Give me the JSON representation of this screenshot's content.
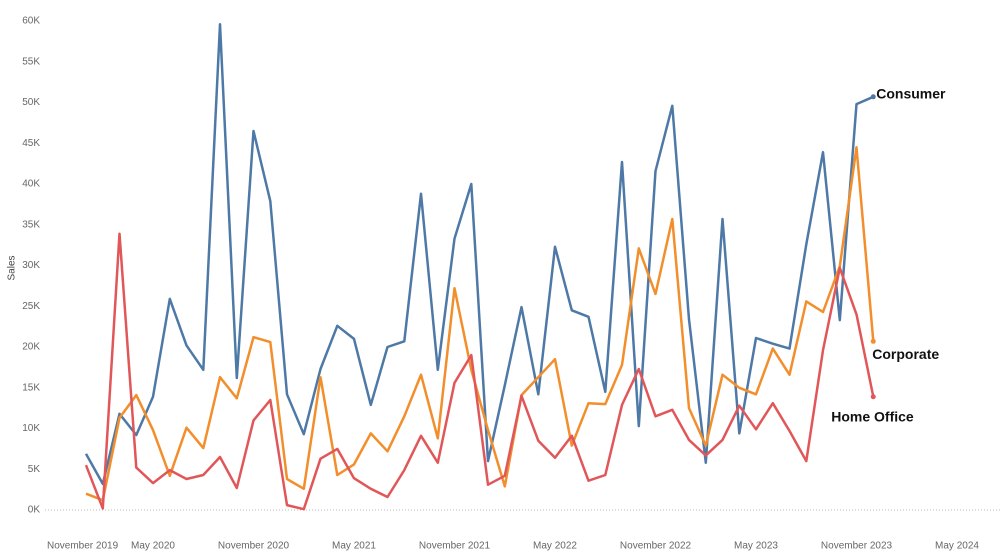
{
  "chart_data": {
    "type": "line",
    "y_label": "Sales",
    "x": [
      "2020-01",
      "2020-02",
      "2020-03",
      "2020-04",
      "2020-05",
      "2020-06",
      "2020-07",
      "2020-08",
      "2020-09",
      "2020-10",
      "2020-11",
      "2020-12",
      "2021-01",
      "2021-02",
      "2021-03",
      "2021-04",
      "2021-05",
      "2021-06",
      "2021-07",
      "2021-08",
      "2021-09",
      "2021-10",
      "2021-11",
      "2021-12",
      "2022-01",
      "2022-02",
      "2022-03",
      "2022-04",
      "2022-05",
      "2022-06",
      "2022-07",
      "2022-08",
      "2022-09",
      "2022-10",
      "2022-11",
      "2022-12",
      "2023-01",
      "2023-02",
      "2023-03",
      "2023-04",
      "2023-05",
      "2023-06",
      "2023-07",
      "2023-08",
      "2023-09",
      "2023-10",
      "2023-11",
      "2023-12"
    ],
    "series": [
      {
        "name": "Consumer",
        "color": "#4e79a7",
        "values": [
          6900,
          3200,
          11800,
          9200,
          13900,
          25900,
          20200,
          17200,
          59600,
          16200,
          46500,
          37900,
          14200,
          9300,
          17300,
          22600,
          21000,
          12900,
          20000,
          20700,
          38800,
          17200,
          33300,
          40000,
          6000,
          15300,
          24900,
          14200,
          32300,
          24500,
          23700,
          14500,
          42700,
          10300,
          41600,
          49600,
          23400,
          5800,
          35700,
          9400,
          21100,
          20400,
          19800,
          32600,
          43900,
          23300,
          49800,
          50700
        ]
      },
      {
        "name": "Corporate",
        "color": "#f28e2b",
        "values": [
          2000,
          1200,
          11300,
          14100,
          9800,
          4200,
          10100,
          7600,
          16300,
          13700,
          21200,
          20600,
          3800,
          2600,
          16300,
          4300,
          5600,
          9400,
          7200,
          11500,
          16600,
          8800,
          27200,
          17200,
          9800,
          2900,
          14100,
          16300,
          18500,
          7900,
          13100,
          13000,
          17800,
          32100,
          26500,
          35700,
          12500,
          7900,
          16600,
          15000,
          14200,
          19800,
          16600,
          25600,
          24300,
          29900,
          44500,
          20700
        ]
      },
      {
        "name": "Home Office",
        "color": "#e15759",
        "values": [
          5500,
          200,
          33900,
          5200,
          3300,
          4900,
          3800,
          4300,
          6500,
          2700,
          11000,
          13500,
          600,
          100,
          6300,
          7500,
          3900,
          2600,
          1600,
          4900,
          9100,
          5800,
          15600,
          19000,
          3100,
          4200,
          14000,
          8500,
          6400,
          9100,
          3600,
          4300,
          12900,
          17300,
          11500,
          12300,
          8600,
          6700,
          8600,
          12800,
          9900,
          13100,
          9700,
          6000,
          19600,
          29700,
          24000,
          13900
        ]
      }
    ],
    "xlim": [
      "2019-11",
      "2024-07"
    ],
    "xticks": [
      {
        "value": "2019-11",
        "label": "November 2019"
      },
      {
        "value": "2020-05",
        "label": "May 2020"
      },
      {
        "value": "2020-11",
        "label": "November 2020"
      },
      {
        "value": "2021-05",
        "label": "May 2021"
      },
      {
        "value": "2021-11",
        "label": "November 2021"
      },
      {
        "value": "2022-05",
        "label": "May 2022"
      },
      {
        "value": "2022-11",
        "label": "November 2022"
      },
      {
        "value": "2023-05",
        "label": "May 2023"
      },
      {
        "value": "2023-11",
        "label": "November 2023"
      },
      {
        "value": "2024-05",
        "label": "May 2024"
      }
    ],
    "ylim": [
      0,
      60000
    ],
    "yticks": [
      {
        "value": 0,
        "label": "0K"
      },
      {
        "value": 5000,
        "label": "5K"
      },
      {
        "value": 10000,
        "label": "10K"
      },
      {
        "value": 15000,
        "label": "15K"
      },
      {
        "value": 20000,
        "label": "20K"
      },
      {
        "value": 25000,
        "label": "25K"
      },
      {
        "value": 30000,
        "label": "30K"
      },
      {
        "value": 35000,
        "label": "35K"
      },
      {
        "value": 40000,
        "label": "40K"
      },
      {
        "value": 45000,
        "label": "45K"
      },
      {
        "value": 50000,
        "label": "50K"
      },
      {
        "value": 55000,
        "label": "55K"
      },
      {
        "value": 60000,
        "label": "60K"
      }
    ],
    "grid": false
  }
}
